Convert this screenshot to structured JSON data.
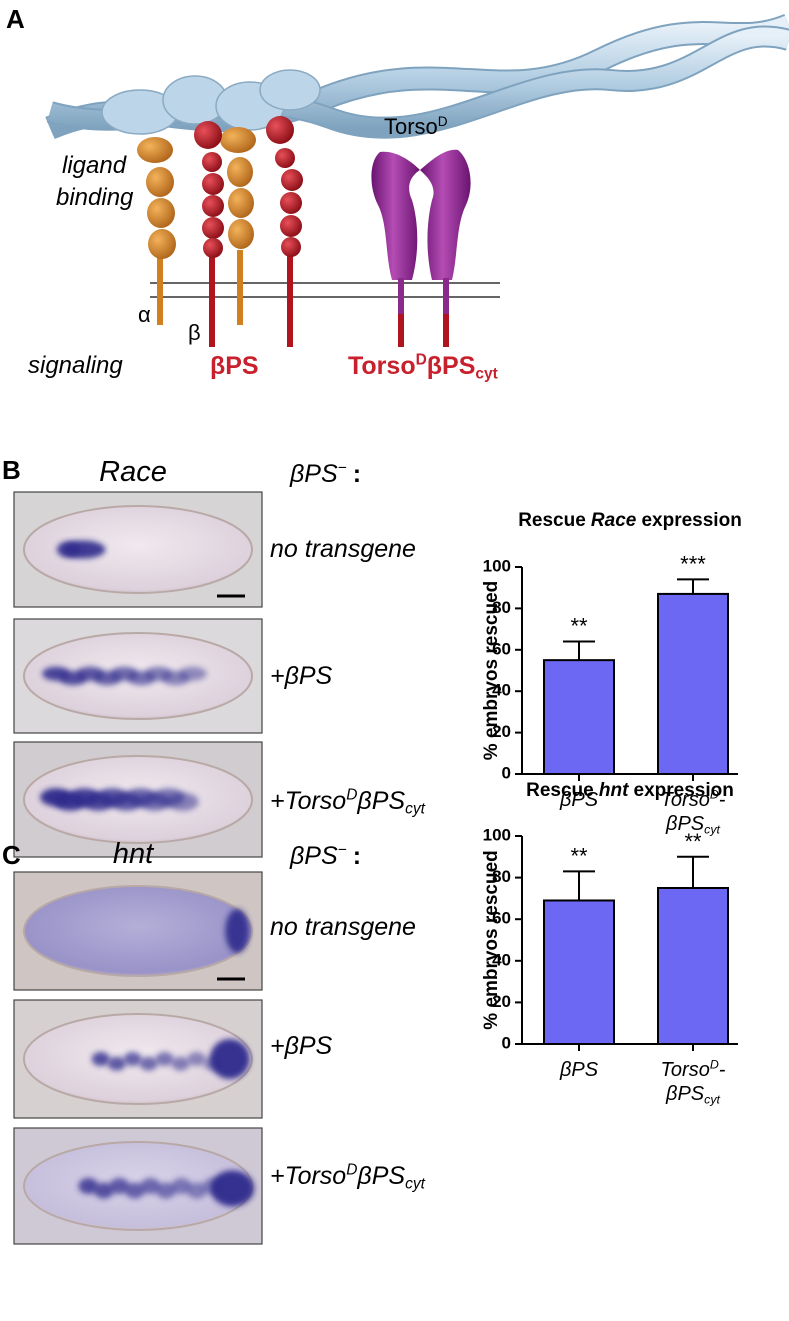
{
  "figure": {
    "panel_a": {
      "label": "A",
      "torso": [
        "Torso",
        {
          "sup": "D"
        }
      ],
      "ligand_binding": [
        "ligand",
        "binding"
      ],
      "alpha": "α",
      "beta": "β",
      "signaling": "signaling",
      "beta_ps": "βPS",
      "torso_beta_ps": [
        "Torso",
        {
          "sup": "D"
        },
        "βPS",
        {
          "sub": "cyt"
        }
      ]
    },
    "panel_b": {
      "label": "B",
      "gene": "Race",
      "genotype": [
        "βPS",
        {
          "sup": "−"
        },
        ":"
      ],
      "rows": [
        [
          "no transgene"
        ],
        [
          "+βPS"
        ],
        [
          "+Torso",
          {
            "sup": "D"
          },
          "βPS",
          {
            "sub": "cyt"
          }
        ]
      ]
    },
    "panel_c": {
      "label": "C",
      "gene": "hnt",
      "genotype": [
        "βPS",
        {
          "sup": "−"
        },
        ":"
      ],
      "rows": [
        [
          "no transgene"
        ],
        [
          "+βPS"
        ],
        [
          "+Torso",
          {
            "sup": "D"
          },
          "βPS",
          {
            "sub": "cyt"
          }
        ]
      ]
    }
  },
  "chart_data": [
    {
      "type": "bar",
      "title": [
        "Rescue",
        {
          "italic": "Race"
        },
        "expression"
      ],
      "y_label": "% embryos rescued",
      "categories": [
        [
          [
            "βPS"
          ]
        ],
        [
          [
            "Torso",
            {
              "sup": "D"
            },
            "-"
          ],
          [
            "βPS",
            {
              "sub": "cyt"
            }
          ]
        ]
      ],
      "values": [
        55,
        87
      ],
      "errors": [
        9,
        7
      ],
      "annotations": [
        "**",
        "***"
      ],
      "color": "#6d68f4",
      "ylim": [
        0,
        100
      ],
      "yticks": [
        0,
        20,
        40,
        60,
        80,
        100
      ]
    },
    {
      "type": "bar",
      "title": [
        "Rescue",
        {
          "italic": "hnt"
        },
        "expression"
      ],
      "y_label": "% embryos rescued",
      "categories": [
        [
          [
            "βPS"
          ]
        ],
        [
          [
            "Torso",
            {
              "sup": "D"
            },
            "-"
          ],
          [
            "βPS",
            {
              "sub": "cyt"
            }
          ]
        ]
      ],
      "values": [
        69,
        75
      ],
      "errors": [
        14,
        15
      ],
      "annotations": [
        "**",
        "**"
      ],
      "color": "#6d68f4",
      "ylim": [
        0,
        100
      ],
      "yticks": [
        0,
        20,
        40,
        60,
        80,
        100
      ]
    }
  ]
}
